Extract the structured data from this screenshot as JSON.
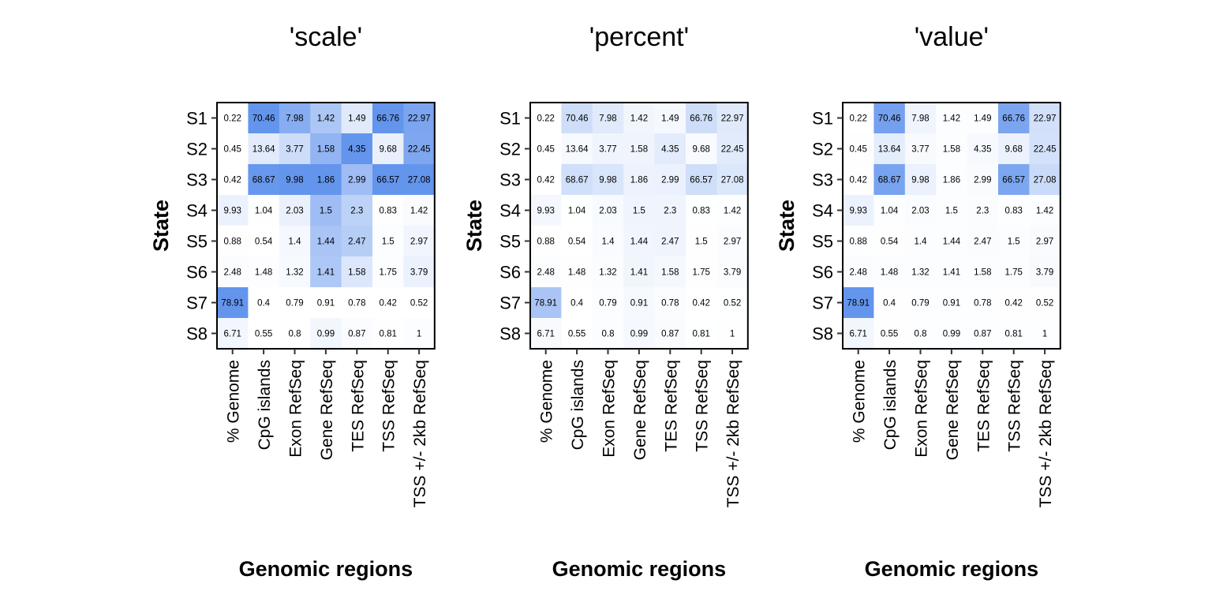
{
  "chart_data": [
    {
      "type": "heatmap",
      "title": "'scale'",
      "xlabel": "Genomic regions",
      "ylabel": "State",
      "color_mode": "column-scaled",
      "color_low": "#ffffff",
      "color_high": "#6495ed"
    },
    {
      "type": "heatmap",
      "title": "'percent'",
      "xlabel": "Genomic regions",
      "ylabel": "State",
      "color_mode": "column-percent",
      "color_low": "#ffffff",
      "color_high": "#6495ed"
    },
    {
      "type": "heatmap",
      "title": "'value'",
      "xlabel": "Genomic regions",
      "ylabel": "State",
      "color_mode": "raw-value",
      "color_low": "#ffffff",
      "color_high": "#6495ed"
    }
  ],
  "heatmap": {
    "columns": [
      "% Genome",
      "CpG islands",
      "Exon RefSeq",
      "Gene RefSeq",
      "TES RefSeq",
      "TSS RefSeq",
      "TSS +/- 2kb RefSeq"
    ],
    "rows": [
      "S1",
      "S2",
      "S3",
      "S4",
      "S5",
      "S6",
      "S7",
      "S8"
    ],
    "values": [
      [
        0.22,
        70.46,
        7.98,
        1.42,
        1.49,
        66.76,
        22.97
      ],
      [
        0.45,
        13.64,
        3.77,
        1.58,
        4.35,
        9.68,
        22.45
      ],
      [
        0.42,
        68.67,
        9.98,
        1.86,
        2.99,
        66.57,
        27.08
      ],
      [
        9.93,
        1.04,
        2.03,
        1.5,
        2.3,
        0.83,
        1.42
      ],
      [
        0.88,
        0.54,
        1.4,
        1.44,
        2.47,
        1.5,
        2.97
      ],
      [
        2.48,
        1.48,
        1.32,
        1.41,
        1.58,
        1.75,
        3.79
      ],
      [
        78.91,
        0.4,
        0.79,
        0.91,
        0.78,
        0.42,
        0.52
      ],
      [
        6.71,
        0.55,
        0.8,
        0.99,
        0.87,
        0.81,
        1
      ]
    ]
  }
}
